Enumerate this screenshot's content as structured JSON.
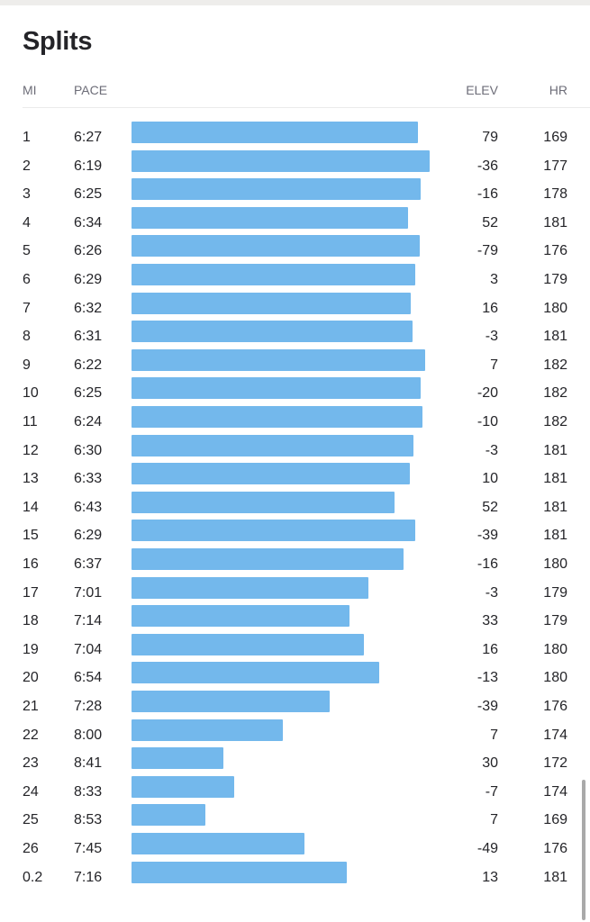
{
  "title": "Splits",
  "headers": {
    "mi": "MI",
    "pace": "PACE",
    "elev": "ELEV",
    "hr": "HR"
  },
  "bar_color": "#73b8ec",
  "splits": [
    {
      "mi": "1",
      "pace": "6:27",
      "elev": "79",
      "hr": "169"
    },
    {
      "mi": "2",
      "pace": "6:19",
      "elev": "-36",
      "hr": "177"
    },
    {
      "mi": "3",
      "pace": "6:25",
      "elev": "-16",
      "hr": "178"
    },
    {
      "mi": "4",
      "pace": "6:34",
      "elev": "52",
      "hr": "181"
    },
    {
      "mi": "5",
      "pace": "6:26",
      "elev": "-79",
      "hr": "176"
    },
    {
      "mi": "6",
      "pace": "6:29",
      "elev": "3",
      "hr": "179"
    },
    {
      "mi": "7",
      "pace": "6:32",
      "elev": "16",
      "hr": "180"
    },
    {
      "mi": "8",
      "pace": "6:31",
      "elev": "-3",
      "hr": "181"
    },
    {
      "mi": "9",
      "pace": "6:22",
      "elev": "7",
      "hr": "182"
    },
    {
      "mi": "10",
      "pace": "6:25",
      "elev": "-20",
      "hr": "182"
    },
    {
      "mi": "11",
      "pace": "6:24",
      "elev": "-10",
      "hr": "182"
    },
    {
      "mi": "12",
      "pace": "6:30",
      "elev": "-3",
      "hr": "181"
    },
    {
      "mi": "13",
      "pace": "6:33",
      "elev": "10",
      "hr": "181"
    },
    {
      "mi": "14",
      "pace": "6:43",
      "elev": "52",
      "hr": "181"
    },
    {
      "mi": "15",
      "pace": "6:29",
      "elev": "-39",
      "hr": "181"
    },
    {
      "mi": "16",
      "pace": "6:37",
      "elev": "-16",
      "hr": "180"
    },
    {
      "mi": "17",
      "pace": "7:01",
      "elev": "-3",
      "hr": "179"
    },
    {
      "mi": "18",
      "pace": "7:14",
      "elev": "33",
      "hr": "179"
    },
    {
      "mi": "19",
      "pace": "7:04",
      "elev": "16",
      "hr": "180"
    },
    {
      "mi": "20",
      "pace": "6:54",
      "elev": "-13",
      "hr": "180"
    },
    {
      "mi": "21",
      "pace": "7:28",
      "elev": "-39",
      "hr": "176"
    },
    {
      "mi": "22",
      "pace": "8:00",
      "elev": "7",
      "hr": "174"
    },
    {
      "mi": "23",
      "pace": "8:41",
      "elev": "30",
      "hr": "172"
    },
    {
      "mi": "24",
      "pace": "8:33",
      "elev": "-7",
      "hr": "174"
    },
    {
      "mi": "25",
      "pace": "8:53",
      "elev": "7",
      "hr": "169"
    },
    {
      "mi": "26",
      "pace": "7:45",
      "elev": "-49",
      "hr": "176"
    },
    {
      "mi": "0.2",
      "pace": "7:16",
      "elev": "13",
      "hr": "181"
    }
  ]
}
